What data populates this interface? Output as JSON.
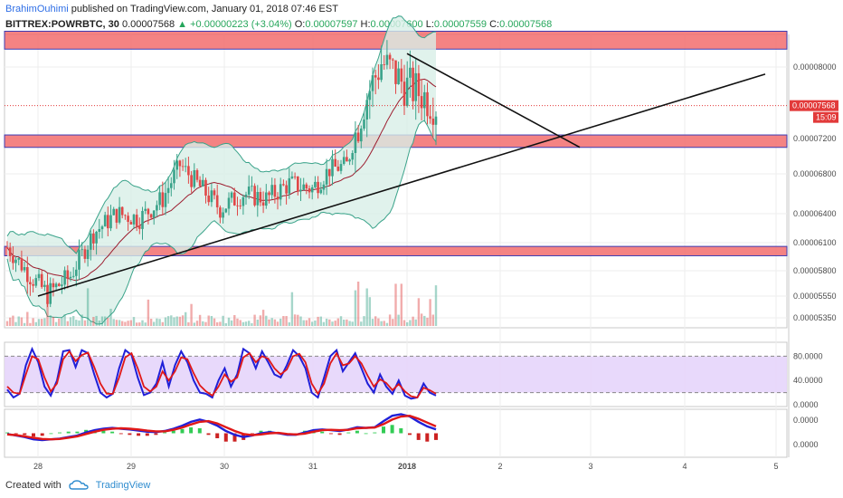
{
  "header": {
    "author": "BrahimOuhimi",
    "published": "published on TradingView.com, January 01, 2018 07:46 EST",
    "symbol": "BITTREX:POWRBTC, 30",
    "last": "0.00007568",
    "change_arrow": "▲",
    "change": "+0.00000223 (+3.04%)",
    "o_label": "O:",
    "o_value": "0.00007597",
    "h_label": "H:",
    "h_value": "0.00007600",
    "l_label": "L:",
    "l_value": "0.00007559",
    "c_label": "C:",
    "c_value": "0.00007568"
  },
  "footer": {
    "created_with": "Created with",
    "brand": "TradingView",
    "logo_icon": "tradingview-cloud-icon"
  },
  "colors": {
    "zone_fill": "#f26d6d",
    "zone_border": "#3b3bb3",
    "bb_line": "#3aa38a",
    "bb_fill": "#d8efe7",
    "bb_basis": "#9c1c2e",
    "candle_up": "#3aa38a",
    "candle_down": "#e04848",
    "stoch_k": "#2020d8",
    "stoch_d": "#e01818",
    "stoch_band": "#e6d5fb",
    "macd": "#2020d8",
    "signal": "#e01818",
    "hist_up": "#33cc55",
    "hist_down": "#cc2222",
    "last_price_tag": "#e23a3a",
    "countdown_tag": "#e23a3a"
  },
  "chart_data": [
    {
      "type": "candlestick",
      "name": "price",
      "x_ticks": [
        "28",
        "29",
        "30",
        "31",
        "2018",
        "2",
        "3",
        "4",
        "5"
      ],
      "y_ticks": [
        "0.00008000",
        "0.00007200",
        "0.00006800",
        "0.00006400",
        "0.00006100",
        "0.00005800",
        "0.00005550",
        "0.00005350"
      ],
      "last_price_label": "0.00007568",
      "countdown_label": "15:09",
      "key_prices": {
        "open": 6.05e-05,
        "low": 5.55e-05,
        "high": 8.28e-05,
        "last": 7.568e-05
      },
      "zones": [
        [
          8.2e-05,
          8.4e-05
        ],
        [
          7.1e-05,
          7.24e-05
        ],
        [
          5.96e-05,
          6.06e-05
        ]
      ],
      "trendlines": [
        {
          "from": [
            "28",
            5.55e-05
          ],
          "to": [
            "5",
            7.92e-05
          ]
        },
        {
          "from": [
            "2018",
            8.15e-05
          ],
          "to": [
            "3",
            7.1e-05
          ]
        }
      ],
      "indicators": [
        "Bollinger Bands",
        "Volume"
      ]
    },
    {
      "type": "line",
      "name": "stochastic",
      "y_ticks": [
        "80.0000",
        "40.0000",
        "0.0000"
      ],
      "ylim": [
        0,
        100
      ],
      "band": [
        20,
        80
      ],
      "series": [
        {
          "values": [
            25,
            12,
            18,
            65,
            92,
            70,
            30,
            15,
            40,
            88,
            90,
            62,
            90,
            85,
            50,
            20,
            12,
            18,
            60,
            90,
            82,
            45,
            16,
            20,
            35,
            70,
            30,
            65,
            88,
            70,
            40,
            20,
            18,
            12,
            40,
            60,
            30,
            50,
            92,
            85,
            60,
            88,
            70,
            50,
            45,
            65,
            90,
            80,
            60,
            20,
            12,
            45,
            80,
            90,
            55,
            70,
            85,
            60,
            35,
            20,
            50,
            30,
            18,
            40,
            15,
            10,
            12,
            35,
            20,
            15
          ]
        },
        {
          "values": [
            30,
            20,
            18,
            50,
            80,
            75,
            45,
            22,
            35,
            75,
            88,
            72,
            82,
            86,
            62,
            35,
            18,
            18,
            45,
            78,
            85,
            60,
            30,
            22,
            30,
            55,
            40,
            55,
            78,
            75,
            52,
            32,
            22,
            15,
            30,
            50,
            38,
            45,
            78,
            85,
            70,
            80,
            76,
            60,
            50,
            58,
            80,
            84,
            70,
            35,
            18,
            35,
            68,
            85,
            65,
            68,
            80,
            68,
            48,
            30,
            42,
            36,
            24,
            34,
            22,
            14,
            12,
            28,
            24,
            18
          ]
        }
      ]
    },
    {
      "type": "line",
      "name": "macd",
      "y_ticks": [
        "0.0000",
        "0.0000"
      ],
      "series": [
        {
          "values": [
            -0.2,
            -0.6,
            -1.0,
            -1.6,
            -1.8,
            -1.6,
            -1.4,
            -1.0,
            -0.6,
            0.2,
            0.8,
            1.2,
            1.4,
            1.2,
            1.0,
            0.7,
            0.4,
            0.3,
            0.6,
            1.2,
            2.0,
            3.0,
            3.6,
            3.0,
            2.0,
            0.6,
            -0.4,
            -1.0,
            -0.6,
            0.0,
            0.3,
            0.0,
            -0.4,
            -0.4,
            0.2,
            0.8,
            1.0,
            0.8,
            0.6,
            1.0,
            1.6,
            1.4,
            1.6,
            3.2,
            4.6,
            5.0,
            4.4,
            3.0,
            1.8,
            1.0
          ]
        },
        {
          "values": [
            -0.3,
            -0.5,
            -0.8,
            -1.2,
            -1.5,
            -1.6,
            -1.5,
            -1.2,
            -0.8,
            -0.2,
            0.4,
            0.9,
            1.2,
            1.3,
            1.2,
            1.0,
            0.7,
            0.5,
            0.5,
            0.9,
            1.5,
            2.3,
            3.0,
            3.2,
            2.6,
            1.6,
            0.6,
            -0.2,
            -0.5,
            -0.3,
            0.0,
            0.1,
            -0.2,
            -0.3,
            -0.1,
            0.4,
            0.8,
            0.9,
            0.8,
            0.9,
            1.3,
            1.4,
            1.5,
            2.4,
            3.6,
            4.4,
            4.6,
            3.8,
            2.8,
            1.8
          ]
        }
      ]
    }
  ]
}
